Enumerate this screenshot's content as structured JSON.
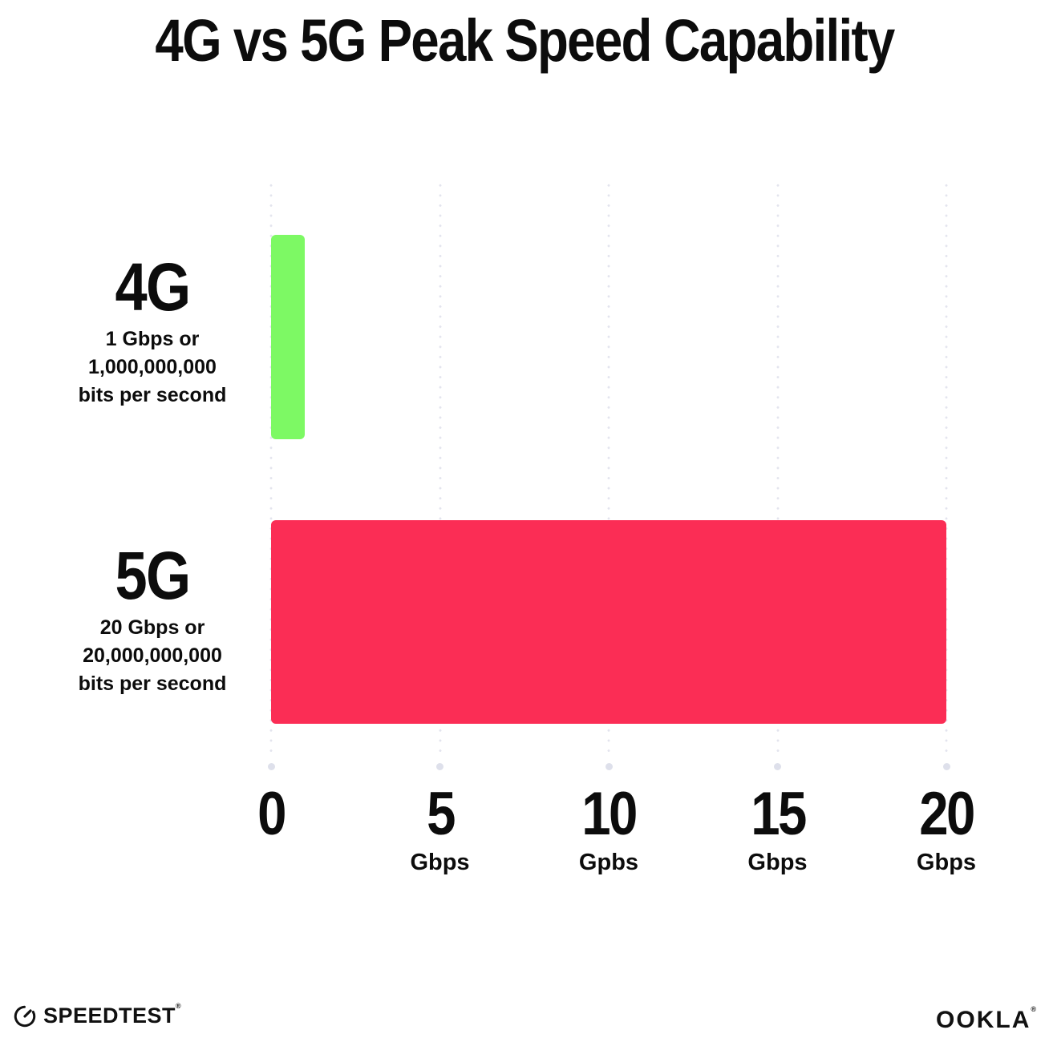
{
  "title": "4G vs 5G Peak Speed Capability",
  "chart_data": {
    "type": "bar",
    "orientation": "horizontal",
    "title": "4G vs 5G Peak Speed Capability",
    "categories": [
      "4G",
      "5G"
    ],
    "values": [
      1,
      20
    ],
    "xlabel_unit": "Gbps",
    "xlim": [
      0,
      20
    ],
    "x_tick_interval": 5,
    "gridlines": "vertical-dotted",
    "legend": "none",
    "bars": [
      {
        "label": "4G",
        "value_gbps": 1,
        "sublabel_lines": [
          "1 Gbps or",
          "1,000,000,000",
          "bits per second"
        ],
        "color": "#7df964"
      },
      {
        "label": "5G",
        "value_gbps": 20,
        "sublabel_lines": [
          "20 Gbps or",
          "20,000,000,000",
          "bits per second"
        ],
        "color": "#fb2d55"
      }
    ],
    "x_ticks": [
      {
        "number": "0",
        "unit": ""
      },
      {
        "number": "5",
        "unit": "Gbps"
      },
      {
        "number": "10",
        "unit": "Gpbs"
      },
      {
        "number": "15",
        "unit": "Gbps"
      },
      {
        "number": "20",
        "unit": "Gbps"
      }
    ]
  },
  "footer": {
    "speedtest_label": "SPEEDTEST",
    "speedtest_trademark": "®",
    "ookla_label": "OOKLA",
    "ookla_trademark": "®"
  },
  "colors": {
    "bar_4g": "#7df964",
    "bar_5g": "#fb2d55",
    "gridline_dot": "#e3e4ee",
    "text": "#0c0c0c",
    "background": "#ffffff"
  }
}
